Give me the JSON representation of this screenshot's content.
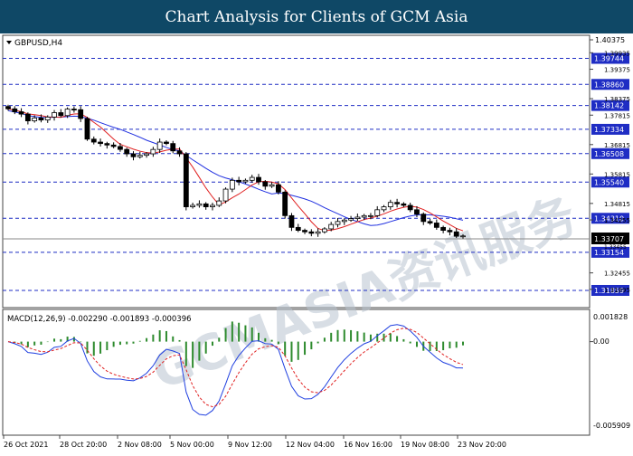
{
  "header": {
    "title": "Chart Analysis for Clients of GCM Asia"
  },
  "watermark": "GCMASIA资讯服务",
  "price_panel": {
    "symbol_label": "GBPUSD,H4",
    "top_price_label": "1.40375",
    "y_ticks": [
      "1.39935",
      "1.39375",
      "1.38375",
      "1.37815",
      "1.36815",
      "1.35815",
      "1.34815",
      "1.34255",
      "1.32455",
      "1.31895"
    ],
    "levels": [
      {
        "value": "1.39744"
      },
      {
        "value": "1.38860"
      },
      {
        "value": "1.38142"
      },
      {
        "value": "1.37334"
      },
      {
        "value": "1.36508"
      },
      {
        "value": "1.35540"
      },
      {
        "value": "1.34310"
      },
      {
        "value": "1.33154"
      },
      {
        "value": "1.31859"
      }
    ],
    "current_price": "1.33707",
    "current_price_overlap": "1.33455"
  },
  "macd_panel": {
    "label": "MACD(12,26,9) -0.002290 -0.001893 -0.000396",
    "y_ticks": [
      "0.001828",
      "0.00",
      "-0.005909"
    ]
  },
  "x_axis": {
    "labels": [
      "26 Oct 2021",
      "28 Oct 20:00",
      "2 Nov 08:00",
      "5 Nov 00:00",
      "9 Nov 12:00",
      "12 Nov 04:00",
      "16 Nov 16:00",
      "19 Nov 08:00",
      "23 Nov 20:00"
    ]
  },
  "colors": {
    "header_bg": "#0f4866",
    "level_line": "#1f2dc4",
    "level_tag": "#1f2dc4",
    "current_price_bg": "#000000",
    "ma_fast": "#e02020",
    "ma_slow": "#2030e0",
    "macd_histogram": "#2e8b2e",
    "macd_line": "#2040e0",
    "signal_line": "#e02020"
  },
  "chart_data": {
    "type": "candlestick",
    "series": [
      {
        "name": "GBPUSD,H4",
        "close": [
          1.3803,
          1.3793,
          1.3785,
          1.3762,
          1.3772,
          1.3765,
          1.3775,
          1.379,
          1.378,
          1.3802,
          1.38,
          1.377,
          1.37,
          1.369,
          1.3685,
          1.368,
          1.3675,
          1.3665,
          1.365,
          1.364,
          1.3645,
          1.365,
          1.3665,
          1.369,
          1.3685,
          1.366,
          1.365,
          1.347,
          1.3475,
          1.348,
          1.347,
          1.3475,
          1.349,
          1.353,
          1.356,
          1.3555,
          1.356,
          1.357,
          1.3555,
          1.354,
          1.3545,
          1.352,
          1.344,
          1.34,
          1.339,
          1.3385,
          1.338,
          1.3385,
          1.3395,
          1.341,
          1.342,
          1.3425,
          1.343,
          1.3435,
          1.344,
          1.344,
          1.346,
          1.347,
          1.3485,
          1.348,
          1.3475,
          1.346,
          1.3445,
          1.342,
          1.3415,
          1.34,
          1.339,
          1.3385,
          1.337,
          1.3371
        ]
      }
    ],
    "macd": {
      "label": "MACD(12,26,9)",
      "values": {
        "macd": -0.00229,
        "signal": -0.001893,
        "histogram": -0.000396
      },
      "ylim": [
        -0.005909,
        0.001828
      ]
    }
  }
}
